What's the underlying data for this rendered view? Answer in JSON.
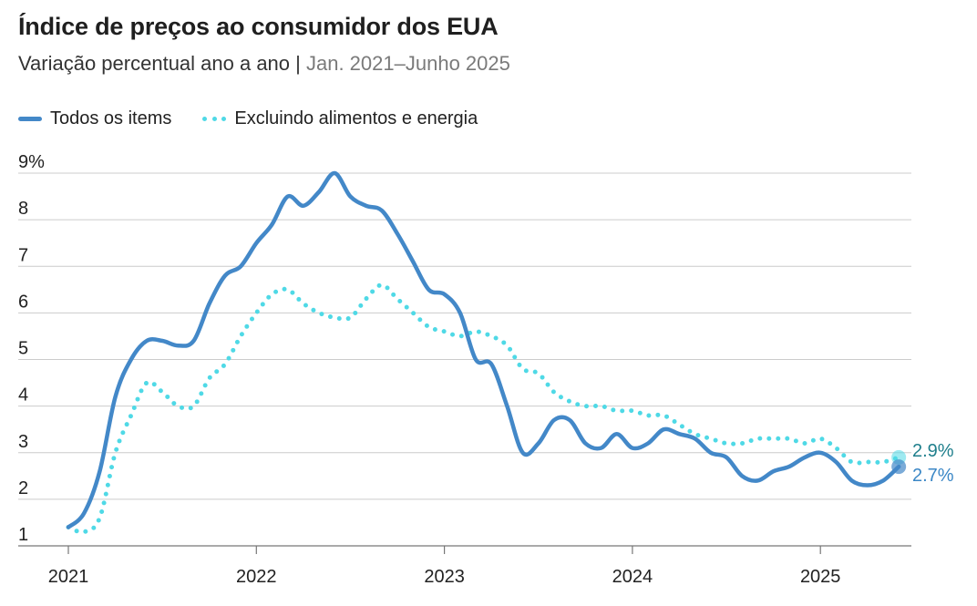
{
  "title": "Índice de preços ao consumidor dos EUA",
  "subtitle_main": "Variação percentual ano a ano",
  "subtitle_sep": " | ",
  "subtitle_range": "Jan. 2021–Junho 2025",
  "colors": {
    "all_items": "#4388c8",
    "core": "#4fd9e6",
    "grid": "#cccccc",
    "axis": "#777777",
    "text": "#222222"
  },
  "legend": [
    {
      "label": "Todos os items",
      "style": "solid"
    },
    {
      "label": "Excluindo alimentos e energia",
      "style": "dotted"
    }
  ],
  "chart_data": {
    "type": "line",
    "x_start": "2021-01",
    "x_end": "2025-06",
    "x_ticks": [
      "2021",
      "2022",
      "2023",
      "2024",
      "2025"
    ],
    "y_ticks": [
      "1",
      "2",
      "3",
      "4",
      "5",
      "6",
      "7",
      "8",
      "9%"
    ],
    "ylim": [
      1,
      9
    ],
    "grid": "horizontal",
    "legend_position": "top-left",
    "x": [
      "2021-01",
      "2021-02",
      "2021-03",
      "2021-04",
      "2021-05",
      "2021-06",
      "2021-07",
      "2021-08",
      "2021-09",
      "2021-10",
      "2021-11",
      "2021-12",
      "2022-01",
      "2022-02",
      "2022-03",
      "2022-04",
      "2022-05",
      "2022-06",
      "2022-07",
      "2022-08",
      "2022-09",
      "2022-10",
      "2022-11",
      "2022-12",
      "2023-01",
      "2023-02",
      "2023-03",
      "2023-04",
      "2023-05",
      "2023-06",
      "2023-07",
      "2023-08",
      "2023-09",
      "2023-10",
      "2023-11",
      "2023-12",
      "2024-01",
      "2024-02",
      "2024-03",
      "2024-04",
      "2024-05",
      "2024-06",
      "2024-07",
      "2024-08",
      "2024-09",
      "2024-10",
      "2024-11",
      "2024-12",
      "2025-01",
      "2025-02",
      "2025-03",
      "2025-04",
      "2025-05",
      "2025-06"
    ],
    "series": [
      {
        "name": "Todos os items",
        "values": [
          1.4,
          1.7,
          2.6,
          4.2,
          5.0,
          5.4,
          5.4,
          5.3,
          5.4,
          6.2,
          6.8,
          7.0,
          7.5,
          7.9,
          8.5,
          8.3,
          8.6,
          9.0,
          8.5,
          8.3,
          8.2,
          7.7,
          7.1,
          6.5,
          6.4,
          6.0,
          5.0,
          4.9,
          4.0,
          3.0,
          3.2,
          3.7,
          3.7,
          3.2,
          3.1,
          3.4,
          3.1,
          3.2,
          3.5,
          3.4,
          3.3,
          3.0,
          2.9,
          2.5,
          2.4,
          2.6,
          2.7,
          2.9,
          3.0,
          2.8,
          2.4,
          2.3,
          2.4,
          2.7
        ]
      },
      {
        "name": "Excluindo alimentos e energia",
        "values": [
          1.4,
          1.3,
          1.6,
          3.0,
          3.8,
          4.5,
          4.3,
          4.0,
          4.0,
          4.6,
          4.9,
          5.5,
          6.0,
          6.4,
          6.5,
          6.2,
          6.0,
          5.9,
          5.9,
          6.3,
          6.6,
          6.3,
          6.0,
          5.7,
          5.6,
          5.5,
          5.6,
          5.5,
          5.3,
          4.8,
          4.7,
          4.3,
          4.1,
          4.0,
          4.0,
          3.9,
          3.9,
          3.8,
          3.8,
          3.6,
          3.4,
          3.3,
          3.2,
          3.2,
          3.3,
          3.3,
          3.3,
          3.2,
          3.3,
          3.1,
          2.8,
          2.8,
          2.8,
          2.9
        ]
      }
    ],
    "end_labels": [
      "2.7%",
      "2.9%"
    ]
  }
}
